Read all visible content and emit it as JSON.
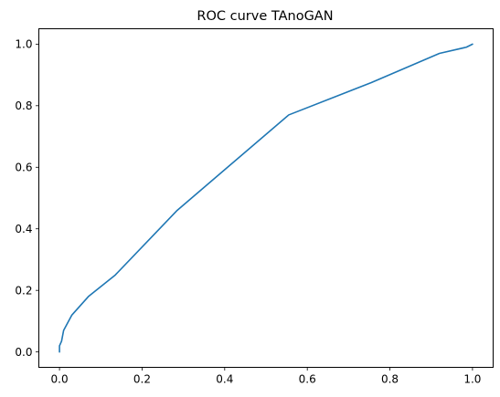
{
  "chart_data": {
    "type": "line",
    "title": "ROC curve TAnoGAN",
    "xlabel": "",
    "ylabel": "",
    "xlim": [
      -0.05,
      1.05
    ],
    "ylim": [
      -0.05,
      1.05
    ],
    "x_ticks": [
      "0.0",
      "0.2",
      "0.4",
      "0.6",
      "0.8",
      "1.0"
    ],
    "y_ticks": [
      "0.0",
      "0.2",
      "0.4",
      "0.6",
      "0.8",
      "1.0"
    ],
    "grid": false,
    "series": [
      {
        "color": "#1f77b4",
        "x": [
          0.0,
          0.0,
          0.005,
          0.01,
          0.03,
          0.07,
          0.135,
          0.285,
          0.555,
          0.755,
          0.92,
          0.985,
          1.0
        ],
        "y": [
          0.0,
          0.02,
          0.035,
          0.07,
          0.12,
          0.18,
          0.25,
          0.46,
          0.77,
          0.875,
          0.97,
          0.99,
          1.0
        ]
      }
    ]
  }
}
